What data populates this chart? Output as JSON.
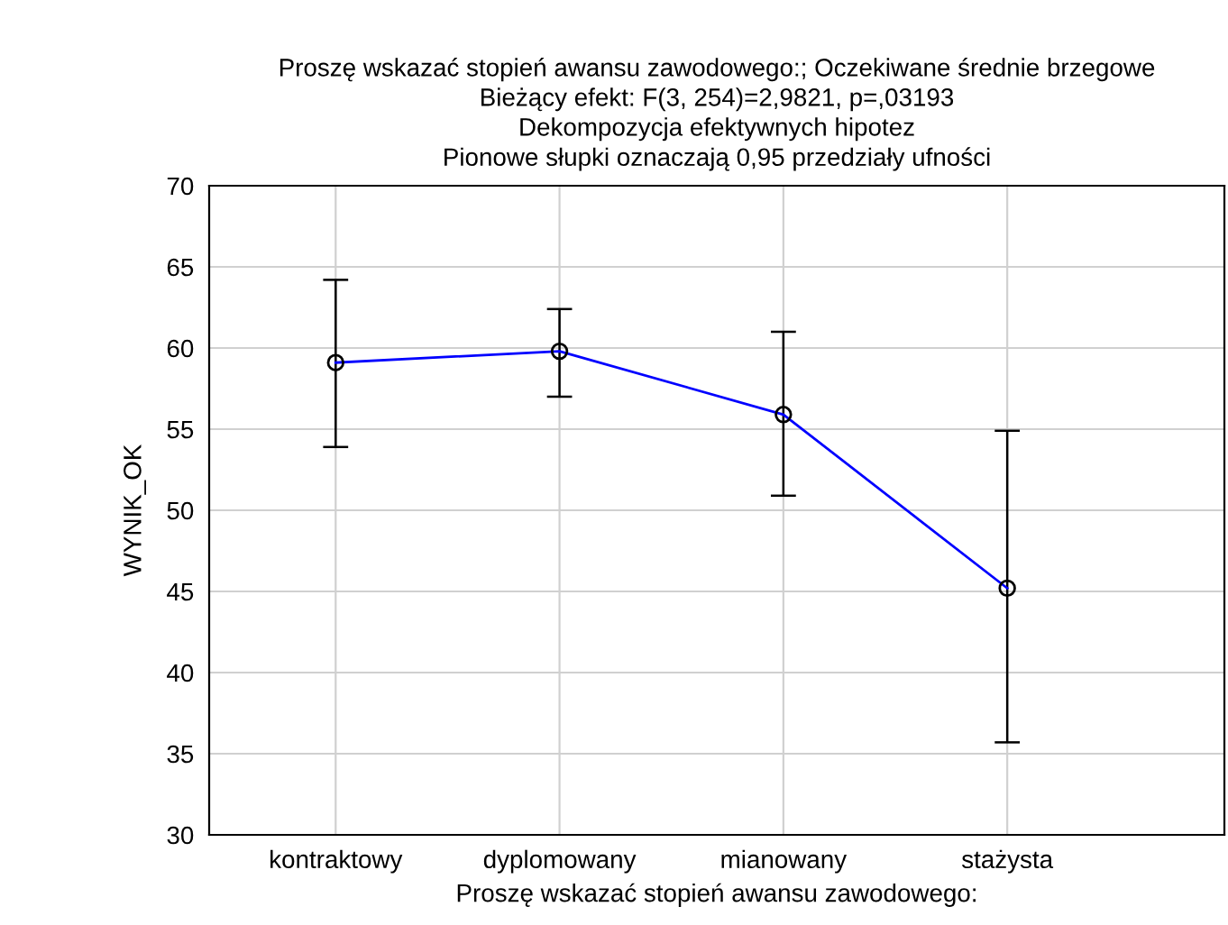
{
  "chart_data": {
    "type": "line",
    "title": "Proszę wskazać stopień awansu zawodowego:; Oczekiwane średnie brzegowe\nBieżący efekt: F(3, 254)=2,9821, p=,03193\nDekompozycja efektywnych hipotez\nPionowe słupki oznaczają 0,95 przedziały ufności",
    "xlabel": "Proszę wskazać stopień awansu zawodowego:",
    "ylabel": "WYNIK_OK",
    "categories": [
      "kontraktowy",
      "dyplomowany",
      "mianowany",
      "stażysta"
    ],
    "series": [
      {
        "color": "#0000ff",
        "values": [
          59.1,
          59.8,
          55.9,
          45.2
        ],
        "errors": [
          [
            53.9,
            64.2
          ],
          [
            57.0,
            62.4
          ],
          [
            50.9,
            61.0
          ],
          [
            35.7,
            54.9
          ]
        ]
      }
    ],
    "ylim": [
      30,
      70
    ],
    "yticks": [
      30,
      35,
      40,
      45,
      50,
      55,
      60,
      65,
      70
    ],
    "grid": true,
    "marker": "circle",
    "line_style": "solid",
    "legend": false
  }
}
